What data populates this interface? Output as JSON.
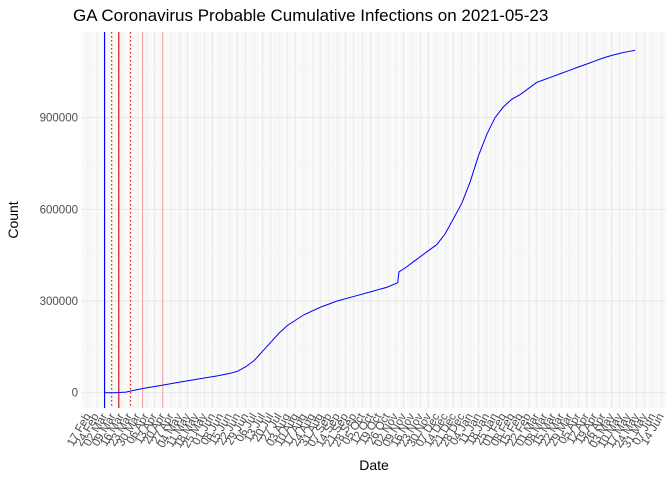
{
  "chart_data": {
    "type": "line",
    "title": "GA Coronavirus Probable Cumulative Infections on 2021-05-23",
    "xlabel": "Date",
    "ylabel": "Count",
    "x_type": "date",
    "xlim": [
      "2020-02-12",
      "2021-06-18"
    ],
    "ylim": [
      -50000,
      1180000
    ],
    "y_ticks": [
      0,
      300000,
      600000,
      900000
    ],
    "y_tick_labels": [
      "0",
      "300000",
      "600000",
      "900000"
    ],
    "x_ticks": [
      "2020-02-17",
      "2020-02-24",
      "2020-03-02",
      "2020-03-09",
      "2020-03-16",
      "2020-03-23",
      "2020-03-30",
      "2020-04-06",
      "2020-04-13",
      "2020-04-20",
      "2020-04-27",
      "2020-05-04",
      "2020-05-11",
      "2020-05-18",
      "2020-05-25",
      "2020-06-01",
      "2020-06-08",
      "2020-06-15",
      "2020-06-22",
      "2020-06-29",
      "2020-07-06",
      "2020-07-13",
      "2020-07-20",
      "2020-07-27",
      "2020-08-03",
      "2020-08-10",
      "2020-08-17",
      "2020-08-24",
      "2020-08-31",
      "2020-09-07",
      "2020-09-14",
      "2020-09-21",
      "2020-09-28",
      "2020-10-05",
      "2020-10-12",
      "2020-10-19",
      "2020-10-26",
      "2020-11-02",
      "2020-11-09",
      "2020-11-16",
      "2020-11-23",
      "2020-11-30",
      "2020-12-07",
      "2020-12-14",
      "2020-12-21",
      "2020-12-28",
      "2021-01-04",
      "2021-01-11",
      "2021-01-18",
      "2021-01-25",
      "2021-02-01",
      "2021-02-08",
      "2021-02-15",
      "2021-02-22",
      "2021-03-01",
      "2021-03-08",
      "2021-03-15",
      "2021-03-22",
      "2021-03-29",
      "2021-04-05",
      "2021-04-12",
      "2021-04-19",
      "2021-04-26",
      "2021-05-03",
      "2021-05-10",
      "2021-05-17",
      "2021-05-24",
      "2021-05-31",
      "2021-06-07",
      "2021-06-14"
    ],
    "x_tick_labels": [
      "17 Feb",
      "24 Feb",
      "02 Mar",
      "09 Mar",
      "16 Mar",
      "23 Mar",
      "30 Mar",
      "06 Apr",
      "13 Apr",
      "20 Apr",
      "27 Apr",
      "04 May",
      "11 May",
      "18 May",
      "25 May",
      "01 Jun",
      "08 Jun",
      "15 Jun",
      "22 Jun",
      "29 Jun",
      "06 Jul",
      "13 Jul",
      "20 Jul",
      "27 Jul",
      "03 Aug",
      "10 Aug",
      "17 Aug",
      "24 Aug",
      "31 Aug",
      "07 Sep",
      "14 Sep",
      "21 Sep",
      "28 Sep",
      "05 Oct",
      "12 Oct",
      "19 Oct",
      "26 Oct",
      "02 Nov",
      "09 Nov",
      "16 Nov",
      "23 Nov",
      "30 Nov",
      "07 Dec",
      "14 Dec",
      "21 Dec",
      "28 Dec",
      "04 Jan",
      "11 Jan",
      "18 Jan",
      "25 Jan",
      "01 Feb",
      "08 Feb",
      "15 Feb",
      "22 Feb",
      "01 Mar",
      "08 Mar",
      "15 Mar",
      "22 Mar",
      "29 Mar",
      "05 Apr",
      "12 Apr",
      "19 Apr",
      "26 Apr",
      "03 May",
      "10 May",
      "17 May",
      "24 May",
      "31 May",
      "07 Jun",
      "14 Jun"
    ],
    "grid": true,
    "legend": "none",
    "series": [
      {
        "color": "#0000ff",
        "x": [
          "2020-03-02",
          "2020-03-10",
          "2020-03-20",
          "2020-03-27",
          "2020-04-05",
          "2020-04-20",
          "2020-05-05",
          "2020-05-20",
          "2020-06-05",
          "2020-06-15",
          "2020-06-22",
          "2020-06-29",
          "2020-07-06",
          "2020-07-13",
          "2020-07-20",
          "2020-07-27",
          "2020-08-03",
          "2020-08-17",
          "2020-08-31",
          "2020-09-14",
          "2020-09-28",
          "2020-10-12",
          "2020-10-26",
          "2020-11-04",
          "2020-11-05",
          "2020-11-11",
          "2020-11-16",
          "2020-11-23",
          "2020-11-30",
          "2020-12-07",
          "2020-12-14",
          "2020-12-21",
          "2020-12-28",
          "2021-01-04",
          "2021-01-11",
          "2021-01-18",
          "2021-01-25",
          "2021-02-01",
          "2021-02-08",
          "2021-02-15",
          "2021-02-22",
          "2021-03-01",
          "2021-03-08",
          "2021-03-15",
          "2021-03-22",
          "2021-03-29",
          "2021-04-05",
          "2021-04-12",
          "2021-04-19",
          "2021-04-26",
          "2021-05-03",
          "2021-05-10",
          "2021-05-17",
          "2021-05-23"
        ],
        "y": [
          0,
          0,
          2000,
          8000,
          15000,
          25000,
          35000,
          45000,
          55000,
          63000,
          70000,
          85000,
          105000,
          135000,
          165000,
          195000,
          220000,
          255000,
          280000,
          300000,
          315000,
          330000,
          345000,
          360000,
          395000,
          410000,
          425000,
          445000,
          465000,
          485000,
          520000,
          570000,
          620000,
          690000,
          775000,
          845000,
          900000,
          935000,
          960000,
          975000,
          995000,
          1015000,
          1025000,
          1035000,
          1045000,
          1055000,
          1065000,
          1075000,
          1085000,
          1095000,
          1103000,
          1110000,
          1116000,
          1120000
        ]
      }
    ],
    "reference_lines": [
      {
        "x": "2020-03-02",
        "color": "#0000ff",
        "style": "solid"
      },
      {
        "x": "2020-03-14",
        "color": "#cc0000",
        "style": "solid"
      },
      {
        "x": "2020-03-08",
        "color": "#cc0000",
        "style": "dotted"
      },
      {
        "x": "2020-03-24",
        "color": "#cc0000",
        "style": "dotted"
      },
      {
        "x": "2020-04-03",
        "color": "#f4a6a6",
        "style": "solid"
      },
      {
        "x": "2020-04-20",
        "color": "#f4a6a6",
        "style": "solid"
      }
    ]
  }
}
